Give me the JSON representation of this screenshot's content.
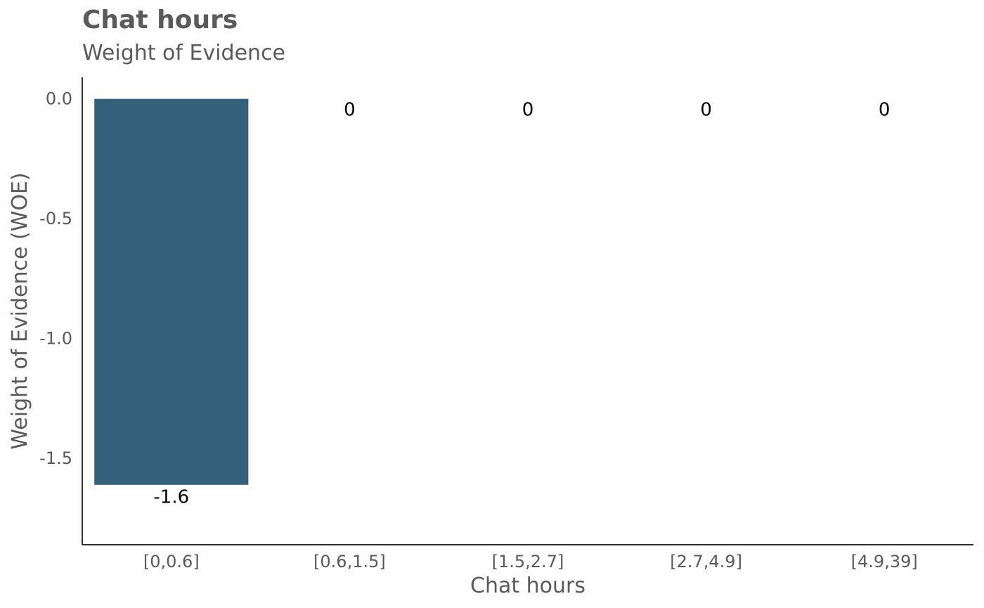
{
  "chart_data": {
    "type": "bar",
    "title": "Chat hours",
    "subtitle": "Weight of Evidence",
    "xlabel": "Chat hours",
    "ylabel": "Weight of Evidence (WOE)",
    "categories": [
      "[0,0.6]",
      "[0.6,1.5]",
      "[1.5,2.7]",
      "[2.7,4.9]",
      "[4.9,39]"
    ],
    "values": [
      -1.61,
      0,
      0,
      0,
      0
    ],
    "value_labels": [
      "-1.6",
      "0",
      "0",
      "0",
      "0"
    ],
    "y_ticks": [
      0.0,
      -0.5,
      -1.0,
      -1.5
    ],
    "y_tick_labels": [
      "0.0",
      "-0.5",
      "-1.0",
      "-1.5"
    ],
    "ylim": [
      -1.86,
      0.09
    ],
    "grid": false,
    "legend": "none",
    "colors": {
      "bar": "#33607a",
      "text": "#5a5a5a",
      "value_label": "#000000",
      "axis": "#333333"
    }
  }
}
